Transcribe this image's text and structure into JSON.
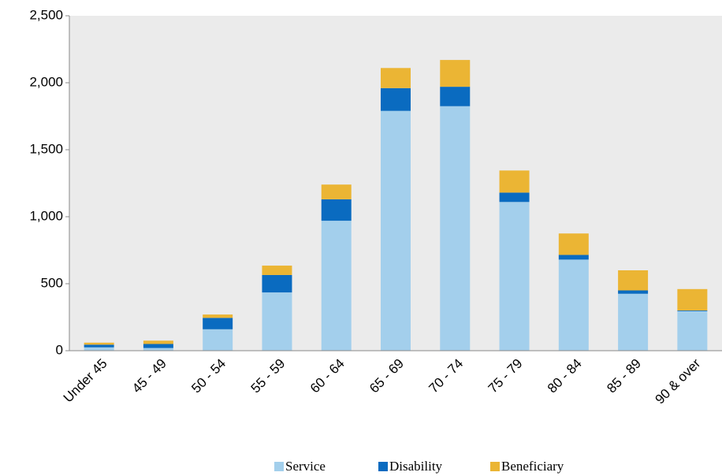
{
  "chart_data": {
    "type": "stacked_bar",
    "categories": [
      "Under 45",
      "45 - 49",
      "50 - 54",
      "55 - 59",
      "60 - 64",
      "65 - 69",
      "70 - 74",
      "75 - 79",
      "80 - 84",
      "85 - 89",
      "90 & over"
    ],
    "series": [
      {
        "name": "Service",
        "color": "#a3cfec",
        "values": [
          25,
          20,
          160,
          435,
          970,
          1790,
          1825,
          1110,
          680,
          425,
          295
        ]
      },
      {
        "name": "Disability",
        "color": "#0a6bc0",
        "values": [
          20,
          30,
          85,
          130,
          160,
          170,
          145,
          70,
          35,
          25,
          5
        ]
      },
      {
        "name": "Beneficiary",
        "color": "#ebb534",
        "values": [
          15,
          25,
          25,
          70,
          110,
          150,
          200,
          165,
          160,
          150,
          160
        ]
      }
    ],
    "ylim": [
      0,
      2500
    ],
    "yticks": [
      0,
      500,
      {
        "value": 1000,
        "label": "1,000"
      },
      {
        "value": 1500,
        "label": "1,500"
      },
      {
        "value": 2000,
        "label": "2,000"
      },
      {
        "value": 2500,
        "label": "2,500"
      }
    ],
    "grid": false
  }
}
